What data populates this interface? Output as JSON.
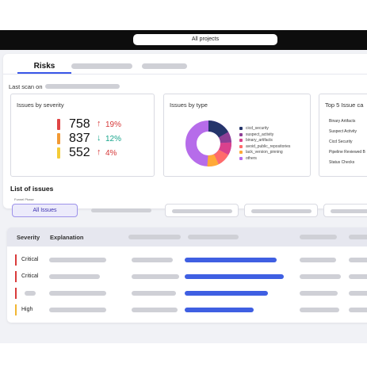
{
  "header": {
    "project_select": "All projects"
  },
  "tabs": {
    "active_label": "Risks"
  },
  "scan": {
    "last_scan_label": "Last scan on"
  },
  "severity_card": {
    "title": "Issues by severity",
    "rows": [
      {
        "count": "758",
        "arrow": "↑",
        "change": "19%",
        "bar_color": "#e04545",
        "trend_color": "#d63a3a"
      },
      {
        "count": "837",
        "arrow": "↓",
        "change": "12%",
        "bar_color": "#f29a35",
        "trend_color": "#19a58c"
      },
      {
        "count": "552",
        "arrow": "↑",
        "change": "4%",
        "bar_color": "#f4cc38",
        "trend_color": "#d63a3a"
      }
    ]
  },
  "type_card": {
    "title": "Issues by type",
    "legend": [
      {
        "label": "cicd_security",
        "color": "#25356b"
      },
      {
        "label": "suspect_activity",
        "color": "#8d3f95"
      },
      {
        "label": "binary_artifacts",
        "color": "#d9418d"
      },
      {
        "label": "avoid_public_repositories",
        "color": "#ff6b6b"
      },
      {
        "label": "lack_version_pinning",
        "color": "#ffa938"
      },
      {
        "label": "others",
        "color": "#b66cea"
      }
    ]
  },
  "top5_card": {
    "title": "Top 5 Issue ca",
    "items": [
      "Binary Artifacts",
      "Suspect Activity",
      "Cicd Security",
      "Pipeline Reviewed B",
      "Status Checks"
    ]
  },
  "list": {
    "title": "List of issues",
    "filter_label": "Funnel Phase",
    "all_issues_label": "All Issues",
    "columns": {
      "severity": "Severity",
      "explanation": "Explanation"
    },
    "rows": [
      {
        "severity": "Critical"
      },
      {
        "severity": "Critical"
      },
      {
        "severity": ""
      },
      {
        "severity": "High"
      }
    ]
  }
}
